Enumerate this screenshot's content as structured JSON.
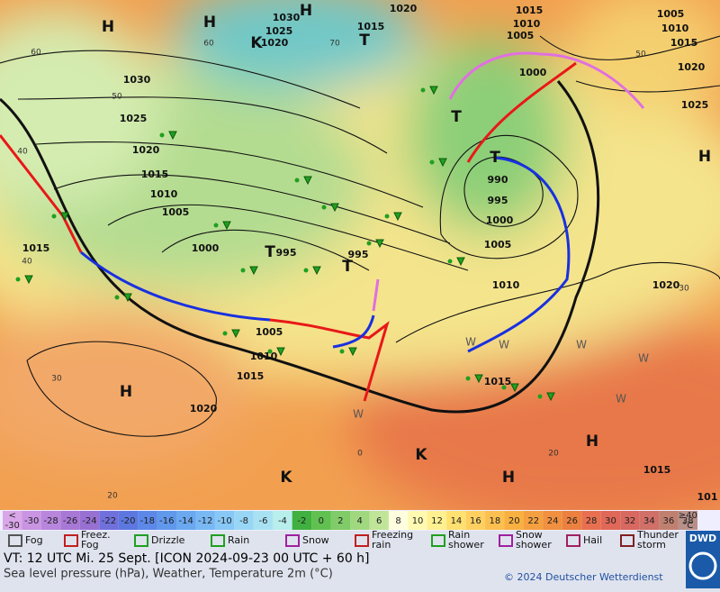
{
  "map": {
    "pressure_labels": [
      "1030",
      "1025",
      "1020",
      "1015",
      "1020",
      "1015",
      "1010",
      "1005",
      "1005",
      "1010",
      "1015",
      "1020",
      "1025",
      "1000",
      "1030",
      "1025",
      "1020",
      "1015",
      "1010",
      "1005",
      "1000",
      "995",
      "995",
      "990",
      "995",
      "1000",
      "1005",
      "1010",
      "1020",
      "1015",
      "1005",
      "1010",
      "1015",
      "1015",
      "1020",
      "1015",
      "101"
    ],
    "temperature_labels": [
      "60",
      "50",
      "40",
      "40",
      "30",
      "20",
      "0",
      "20",
      "60",
      "70",
      "50",
      "30"
    ],
    "centers": [
      "H",
      "H",
      "H",
      "H",
      "H",
      "H",
      "H",
      "T",
      "T",
      "T",
      "T",
      "T",
      "K",
      "K",
      "K"
    ],
    "weather_letters": [
      "W",
      "W",
      "W",
      "W",
      "W",
      "W"
    ]
  },
  "legend": {
    "scale_low": [
      "<",
      "-30"
    ],
    "scale_labels": [
      "-30",
      "-28",
      "-26",
      "-24",
      "-22",
      "-20",
      "-18",
      "-16",
      "-14",
      "-12",
      "-10",
      "-8",
      "-6",
      "-4",
      "-2",
      "0",
      "2",
      "4",
      "6",
      "8",
      "10",
      "12",
      "14",
      "16",
      "18",
      "20",
      "22",
      "24",
      "26",
      "28",
      "30",
      "32",
      "34",
      "36",
      "38"
    ],
    "scale_high": [
      "≥40",
      "°C"
    ],
    "scale_colors": [
      "#d9a6e8",
      "#c994e2",
      "#b886dc",
      "#a878d6",
      "#9870d2",
      "#7070dc",
      "#5c78e0",
      "#5c88e8",
      "#6098ec",
      "#6aa8f0",
      "#78b8f4",
      "#88c8f6",
      "#98d6f6",
      "#a8e2f2",
      "#b8eeec",
      "#40b040",
      "#60c050",
      "#80cc68",
      "#a0d880",
      "#c0e498",
      "#ffffe0",
      "#fffab0",
      "#fff090",
      "#ffe070",
      "#ffd060",
      "#fcc050",
      "#f8b040",
      "#f4a040",
      "#f09040",
      "#ec8040",
      "#e87050",
      "#e06858",
      "#d86860",
      "#d07068",
      "#c08070",
      "#b89088"
    ],
    "weather_legend": [
      [
        "Fog"
      ],
      [
        "Freez.",
        "Fog"
      ],
      [
        "Drizzle"
      ],
      [
        "Rain"
      ],
      [
        "Snow"
      ],
      [
        "Freezing",
        "rain"
      ],
      [
        "Rain",
        "shower"
      ],
      [
        "Snow",
        "shower"
      ],
      [
        "Hail"
      ],
      [
        "Thunder",
        "storm"
      ]
    ]
  },
  "footer": {
    "valid_time": "VT: 12 UTC Mi.  25 Sept. [ICON 2024-09-23  00 UTC + 60 h]",
    "description": "Sea level pressure (hPa), Weather, Temperature 2m (°C)",
    "copyright": "© 2024 Deutscher Wetterdienst",
    "logo": "DWD"
  }
}
